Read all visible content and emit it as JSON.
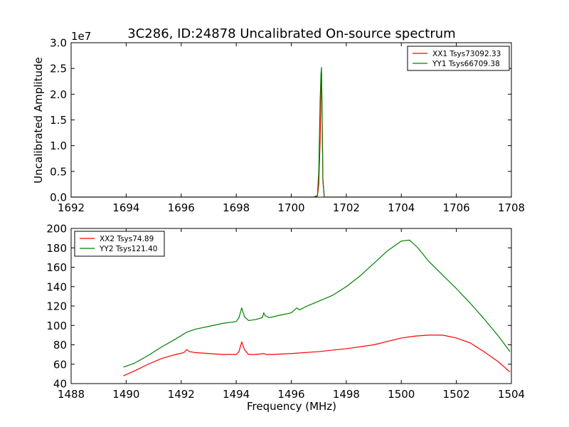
{
  "chart_data": [
    {
      "type": "line",
      "title": "3C286, ID:24878 Uncalibrated On-source spectrum",
      "xlabel": "",
      "ylabel": "Uncalibrated Amplitude",
      "y_offset_label": "1e7",
      "xlim": [
        1692,
        1708
      ],
      "ylim": [
        0.0,
        3.0
      ],
      "x_ticks": [
        "1692",
        "1694",
        "1696",
        "1698",
        "1700",
        "1702",
        "1704",
        "1706",
        "1708"
      ],
      "y_ticks": [
        "0.0",
        "0.5",
        "1.0",
        "1.5",
        "2.0",
        "2.5",
        "3.0"
      ],
      "legend_position": "top-right",
      "series": [
        {
          "name": "XX1 Tsys73092.33",
          "color": "#ff0000",
          "x": [
            1692.0,
            1700.8,
            1700.95,
            1701.0,
            1701.05,
            1701.08,
            1701.1,
            1701.12,
            1701.15,
            1701.2,
            1708.0
          ],
          "y": [
            0.0,
            0.0,
            0.02,
            0.25,
            1.1,
            2.1,
            2.4,
            1.6,
            0.3,
            0.0,
            0.0
          ]
        },
        {
          "name": "YY1 Tsys66709.38",
          "color": "#008000",
          "x": [
            1692.0,
            1700.8,
            1700.95,
            1701.0,
            1701.05,
            1701.08,
            1701.1,
            1701.12,
            1701.15,
            1701.2,
            1708.0
          ],
          "y": [
            0.0,
            0.0,
            0.03,
            0.5,
            1.9,
            2.4,
            2.52,
            1.7,
            0.35,
            0.0,
            0.0
          ]
        }
      ]
    },
    {
      "type": "line",
      "title": "",
      "xlabel": "Frequency (MHz)",
      "ylabel": "",
      "xlim": [
        1488,
        1504
      ],
      "ylim": [
        40,
        200
      ],
      "x_ticks": [
        "1488",
        "1490",
        "1492",
        "1494",
        "1496",
        "1498",
        "1500",
        "1502",
        "1504"
      ],
      "y_ticks": [
        "40",
        "60",
        "80",
        "100",
        "120",
        "140",
        "160",
        "180",
        "200"
      ],
      "legend_position": "top-left",
      "series": [
        {
          "name": "XX2 Tsys74.89",
          "color": "#ff0000",
          "x": [
            1489.9,
            1490.3,
            1490.8,
            1491.3,
            1491.8,
            1492.1,
            1492.2,
            1492.3,
            1492.5,
            1493.0,
            1493.5,
            1494.0,
            1494.1,
            1494.2,
            1494.3,
            1494.45,
            1494.7,
            1495.0,
            1495.1,
            1495.3,
            1496.0,
            1497.0,
            1498.0,
            1499.0,
            1500.0,
            1500.5,
            1501.0,
            1501.5,
            1502.0,
            1502.5,
            1503.0,
            1503.5,
            1503.95
          ],
          "y": [
            48,
            53,
            60,
            66,
            70,
            72,
            75,
            73,
            72,
            71,
            70,
            70,
            73,
            83,
            75,
            70,
            70,
            71,
            70,
            70,
            71,
            73,
            76,
            80,
            87,
            89,
            90,
            90,
            87,
            82,
            73,
            63,
            52
          ]
        },
        {
          "name": "YY2 Tsys121.40",
          "color": "#008000",
          "x": [
            1489.9,
            1490.3,
            1490.8,
            1491.3,
            1491.8,
            1492.2,
            1492.5,
            1493.0,
            1493.5,
            1494.0,
            1494.1,
            1494.2,
            1494.3,
            1494.45,
            1494.7,
            1494.95,
            1495.0,
            1495.05,
            1495.2,
            1495.5,
            1496.0,
            1496.2,
            1496.3,
            1496.5,
            1497.0,
            1497.5,
            1498.0,
            1498.5,
            1499.0,
            1499.5,
            1500.0,
            1500.3,
            1500.6,
            1501.0,
            1501.5,
            1502.0,
            1502.5,
            1503.0,
            1503.5,
            1503.95
          ],
          "y": [
            57,
            61,
            69,
            78,
            86,
            93,
            96,
            99,
            102,
            104,
            108,
            118,
            109,
            105,
            106,
            108,
            113,
            110,
            108,
            110,
            113,
            118,
            116,
            119,
            125,
            131,
            140,
            151,
            164,
            177,
            187,
            188,
            180,
            166,
            152,
            138,
            123,
            107,
            90,
            73
          ]
        }
      ]
    }
  ]
}
